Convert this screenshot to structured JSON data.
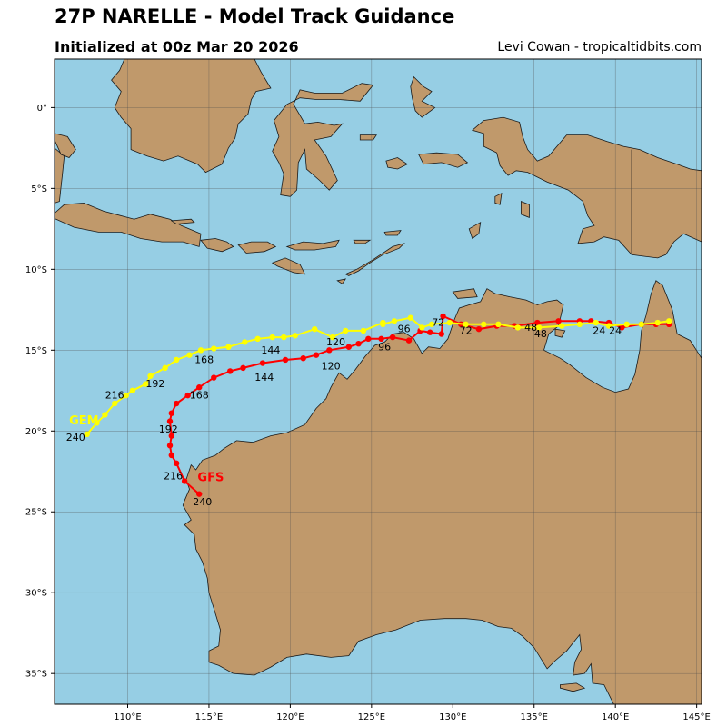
{
  "header": {
    "title": "27P NARELLE - Model Track Guidance",
    "subtitle": "Initialized at 00z Mar 20 2026",
    "credit": "Levi Cowan - tropicaltidbits.com"
  },
  "colors": {
    "ocean": "#96cee4",
    "land": "#c0996b",
    "coast": "#1a1a1a",
    "grid": "#4d4d4d",
    "gfs": "#ff0000",
    "gem": "#ffff00"
  },
  "map": {
    "lon_range": [
      105.5,
      145.3
    ],
    "lat_range": [
      -36.9,
      3.0
    ],
    "lon_ticks": [
      {
        "value": 110,
        "label": "110°E"
      },
      {
        "value": 115,
        "label": "115°E"
      },
      {
        "value": 120,
        "label": "120°E"
      },
      {
        "value": 125,
        "label": "125°E"
      },
      {
        "value": 130,
        "label": "130°E"
      },
      {
        "value": 135,
        "label": "135°E"
      },
      {
        "value": 140,
        "label": "140°E"
      },
      {
        "value": 145,
        "label": "145°E"
      }
    ],
    "lat_ticks": [
      {
        "value": 0,
        "label": "0°"
      },
      {
        "value": -5,
        "label": "5°S"
      },
      {
        "value": -10,
        "label": "10°S"
      },
      {
        "value": -15,
        "label": "15°S"
      },
      {
        "value": -20,
        "label": "20°S"
      },
      {
        "value": -25,
        "label": "25°S"
      },
      {
        "value": -30,
        "label": "30°S"
      },
      {
        "value": -35,
        "label": "35°S"
      }
    ],
    "grid": true
  },
  "tracks": [
    {
      "name": "GFS",
      "color": "#ff0000",
      "label_at": [
        114.3,
        -23.1
      ],
      "points": [
        [
          143.3,
          -13.4
        ],
        [
          142.5,
          -13.4
        ],
        [
          141.6,
          -13.4
        ],
        [
          140.4,
          -13.6
        ],
        [
          139.6,
          -13.3
        ],
        [
          138.5,
          -13.2
        ],
        [
          137.8,
          -13.2
        ],
        [
          136.5,
          -13.2
        ],
        [
          135.2,
          -13.3
        ],
        [
          133.8,
          -13.5
        ],
        [
          132.7,
          -13.5
        ],
        [
          131.6,
          -13.7
        ],
        [
          130.5,
          -13.4
        ],
        [
          129.4,
          -12.9
        ],
        [
          129.3,
          -14.0
        ],
        [
          128.6,
          -13.9
        ],
        [
          128.0,
          -13.8
        ],
        [
          127.3,
          -14.4
        ],
        [
          126.3,
          -14.2
        ],
        [
          125.6,
          -14.3
        ],
        [
          124.8,
          -14.3
        ],
        [
          124.2,
          -14.6
        ],
        [
          123.6,
          -14.8
        ],
        [
          122.4,
          -15.0
        ],
        [
          121.6,
          -15.3
        ],
        [
          120.8,
          -15.5
        ],
        [
          119.7,
          -15.6
        ],
        [
          118.3,
          -15.8
        ],
        [
          117.1,
          -16.1
        ],
        [
          116.3,
          -16.3
        ],
        [
          115.3,
          -16.7
        ],
        [
          114.4,
          -17.3
        ],
        [
          113.7,
          -17.8
        ],
        [
          113.0,
          -18.3
        ],
        [
          112.7,
          -18.9
        ],
        [
          112.6,
          -19.4
        ],
        [
          112.7,
          -20.3
        ],
        [
          112.6,
          -20.9
        ],
        [
          112.7,
          -21.5
        ],
        [
          113.0,
          -22.0
        ],
        [
          113.5,
          -23.1
        ],
        [
          114.4,
          -23.9
        ]
      ],
      "hour_labels": [
        {
          "text": "24",
          "pos": [
            140.0,
            -14.0
          ]
        },
        {
          "text": "48",
          "pos": [
            135.4,
            -14.2
          ]
        },
        {
          "text": "72",
          "pos": [
            130.8,
            -14.0
          ]
        },
        {
          "text": "96",
          "pos": [
            125.8,
            -15.0
          ]
        },
        {
          "text": "120",
          "pos": [
            122.5,
            -16.2
          ]
        },
        {
          "text": "144",
          "pos": [
            118.4,
            -16.9
          ]
        },
        {
          "text": "168",
          "pos": [
            114.4,
            -18.0
          ]
        },
        {
          "text": "192",
          "pos": [
            112.5,
            -20.1
          ]
        },
        {
          "text": "216",
          "pos": [
            112.8,
            -23.0
          ]
        },
        {
          "text": "240",
          "pos": [
            114.6,
            -24.6
          ]
        }
      ]
    },
    {
      "name": "GEM",
      "color": "#ffff00",
      "label_at": [
        106.4,
        -19.6
      ],
      "points": [
        [
          143.3,
          -13.2
        ],
        [
          142.6,
          -13.3
        ],
        [
          141.6,
          -13.4
        ],
        [
          140.7,
          -13.4
        ],
        [
          139.6,
          -13.5
        ],
        [
          138.8,
          -13.3
        ],
        [
          137.8,
          -13.4
        ],
        [
          136.7,
          -13.5
        ],
        [
          135.3,
          -13.6
        ],
        [
          134.0,
          -13.6
        ],
        [
          132.8,
          -13.4
        ],
        [
          131.9,
          -13.4
        ],
        [
          130.8,
          -13.4
        ],
        [
          129.8,
          -13.3
        ],
        [
          128.7,
          -13.4
        ],
        [
          128.1,
          -13.6
        ],
        [
          127.4,
          -13.0
        ],
        [
          126.4,
          -13.2
        ],
        [
          125.7,
          -13.4
        ],
        [
          125.7,
          -13.3
        ],
        [
          124.5,
          -13.8
        ],
        [
          123.4,
          -13.8
        ],
        [
          122.6,
          -14.2
        ],
        [
          121.5,
          -13.7
        ],
        [
          120.3,
          -14.1
        ],
        [
          119.6,
          -14.2
        ],
        [
          118.9,
          -14.2
        ],
        [
          118.0,
          -14.3
        ],
        [
          117.2,
          -14.5
        ],
        [
          116.2,
          -14.8
        ],
        [
          115.3,
          -14.9
        ],
        [
          114.5,
          -15.0
        ],
        [
          113.8,
          -15.3
        ],
        [
          113.0,
          -15.6
        ],
        [
          112.3,
          -16.1
        ],
        [
          111.4,
          -16.6
        ],
        [
          111.1,
          -17.1
        ],
        [
          110.3,
          -17.5
        ],
        [
          109.9,
          -17.8
        ],
        [
          109.2,
          -18.3
        ],
        [
          108.6,
          -19.0
        ],
        [
          108.1,
          -19.5
        ],
        [
          107.5,
          -20.2
        ]
      ],
      "hour_labels": [
        {
          "text": "24",
          "pos": [
            139.0,
            -14.0
          ]
        },
        {
          "text": "48",
          "pos": [
            134.8,
            -13.8
          ]
        },
        {
          "text": "72",
          "pos": [
            129.1,
            -13.5
          ]
        },
        {
          "text": "96",
          "pos": [
            127.0,
            -13.9
          ]
        },
        {
          "text": "120",
          "pos": [
            122.8,
            -14.7
          ]
        },
        {
          "text": "144",
          "pos": [
            118.8,
            -15.2
          ]
        },
        {
          "text": "168",
          "pos": [
            114.7,
            -15.8
          ]
        },
        {
          "text": "192",
          "pos": [
            111.7,
            -17.3
          ]
        },
        {
          "text": "216",
          "pos": [
            109.2,
            -18.0
          ]
        },
        {
          "text": "240",
          "pos": [
            106.8,
            -20.6
          ]
        }
      ]
    }
  ]
}
